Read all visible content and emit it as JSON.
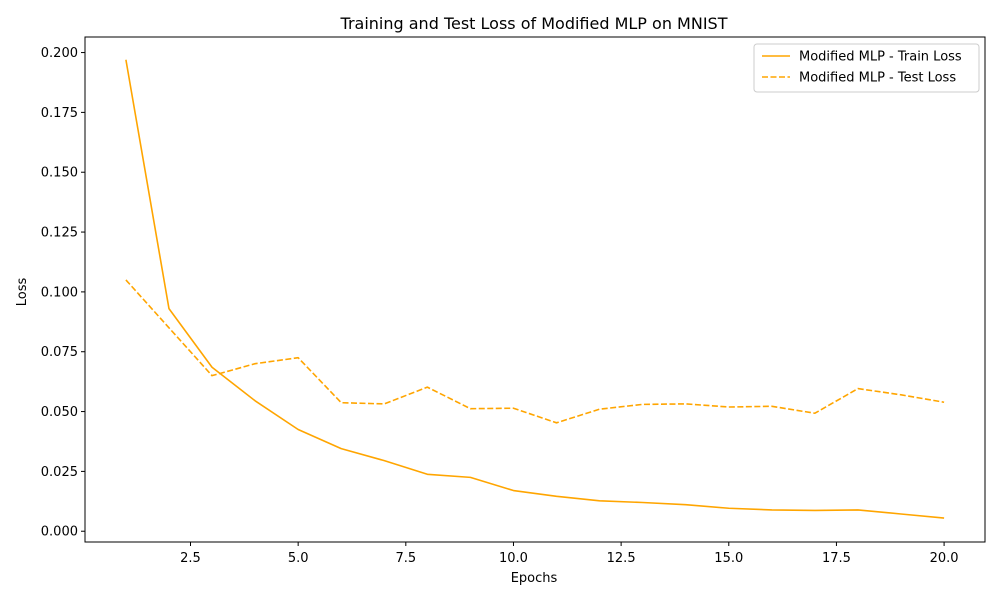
{
  "chart_data": {
    "type": "line",
    "title": "Training and Test Loss of Modified MLP on MNIST",
    "xlabel": "Epochs",
    "ylabel": "Loss",
    "xlim": [
      0.05,
      20.95
    ],
    "ylim": [
      -0.0045,
      0.2065
    ],
    "x_ticks": [
      2.5,
      5.0,
      7.5,
      10.0,
      12.5,
      15.0,
      17.5,
      20.0
    ],
    "x_tick_labels": [
      "2.5",
      "5.0",
      "7.5",
      "10.0",
      "12.5",
      "15.0",
      "17.5",
      "20.0"
    ],
    "y_ticks": [
      0.0,
      0.025,
      0.05,
      0.075,
      0.1,
      0.125,
      0.15,
      0.175,
      0.2
    ],
    "y_tick_labels": [
      "0.000",
      "0.025",
      "0.050",
      "0.075",
      "0.100",
      "0.125",
      "0.150",
      "0.175",
      "0.200"
    ],
    "grid": false,
    "legend_position": "top-right",
    "x": [
      1,
      2,
      3,
      4,
      5,
      6,
      7,
      8,
      9,
      10,
      11,
      12,
      13,
      14,
      15,
      16,
      17,
      18,
      19,
      20
    ],
    "series": [
      {
        "name": "Modified MLP - Train Loss",
        "style": "solid",
        "color": "#ffa500",
        "values": [
          0.197,
          0.093,
          0.0685,
          0.0545,
          0.0425,
          0.0345,
          0.0295,
          0.0238,
          0.0225,
          0.017,
          0.0146,
          0.0127,
          0.012,
          0.0111,
          0.0096,
          0.0089,
          0.0087,
          0.0089,
          0.0072,
          0.0055
        ]
      },
      {
        "name": "Modified MLP - Test Loss",
        "style": "dashed",
        "color": "#ffa500",
        "values": [
          0.105,
          0.085,
          0.065,
          0.07,
          0.0725,
          0.0537,
          0.0532,
          0.0602,
          0.0512,
          0.0514,
          0.0453,
          0.051,
          0.053,
          0.0532,
          0.0519,
          0.0522,
          0.0493,
          0.0596,
          0.057,
          0.0539
        ]
      }
    ]
  }
}
